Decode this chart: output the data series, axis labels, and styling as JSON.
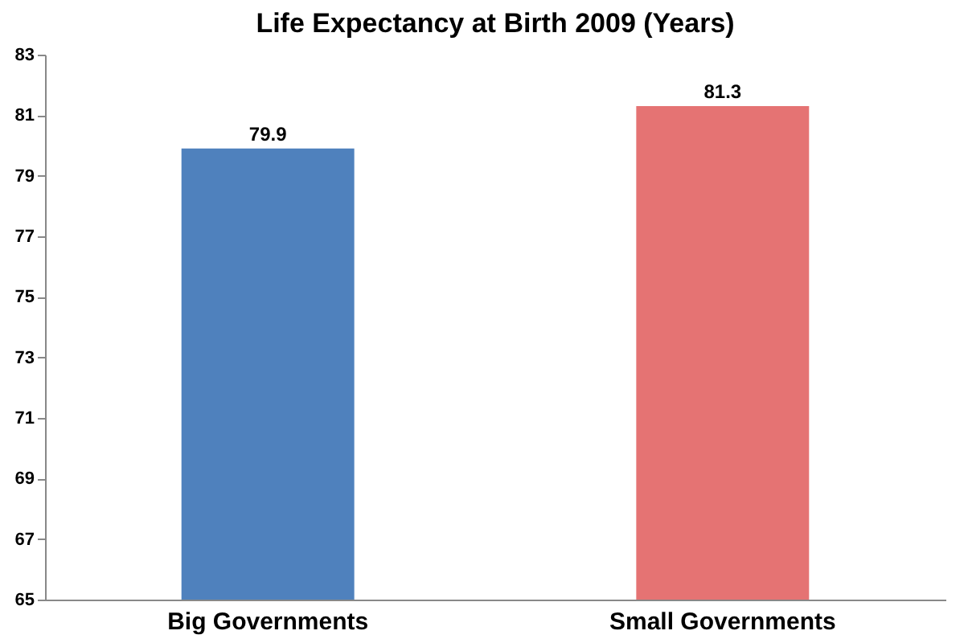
{
  "chart_data": {
    "type": "bar",
    "title": "Life Expectancy at Birth 2009 (Years)",
    "categories": [
      "Big Governments",
      "Small Governments"
    ],
    "values": [
      79.9,
      81.3
    ],
    "colors": [
      "#4f81bd",
      "#e57373"
    ],
    "ylim": [
      65,
      83
    ],
    "yticks": [
      65,
      67,
      69,
      71,
      73,
      75,
      77,
      79,
      81,
      83
    ],
    "data_labels": true,
    "grid": false
  }
}
